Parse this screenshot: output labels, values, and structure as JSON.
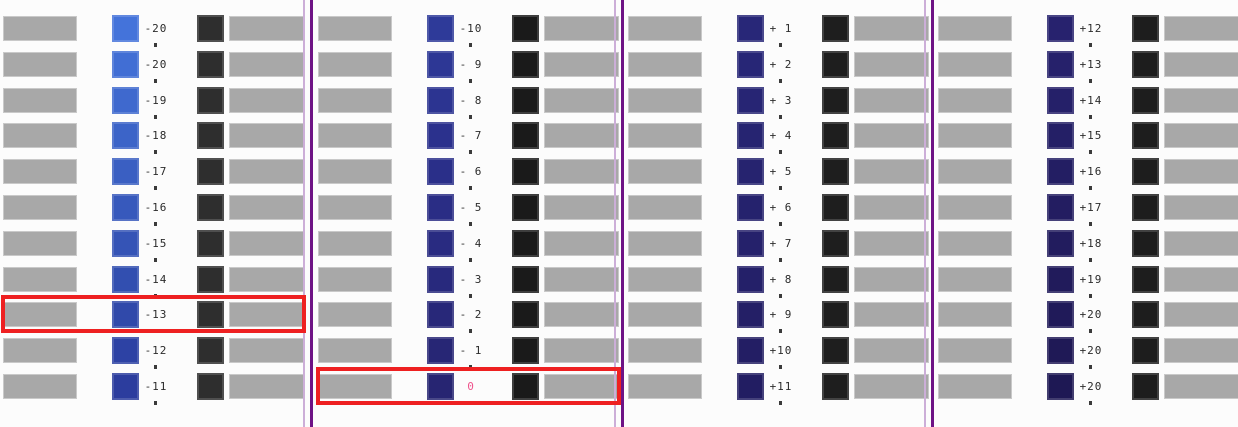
{
  "sheet": {
    "background": "#fcfcfc",
    "patch_gray": "#a8a8a8",
    "patch_border": "#c9c9c9",
    "label_color": "#2b2b2b",
    "dot_color": "#3a3a3a",
    "dot_glyph": "*"
  },
  "separator": {
    "thick_color": "#6e1385",
    "thin_color": "#ccaed8"
  },
  "highlight_boxes": [
    {
      "name": "column-1-selection",
      "column": 0,
      "row_index": 8,
      "border_color": "#ee2021",
      "label_color": null
    },
    {
      "name": "column-2-selection",
      "column": 1,
      "row_index": 10,
      "border_color": "#ee2021",
      "label_color": "#ef558d"
    }
  ],
  "columns": [
    {
      "black": "#2e2e2e",
      "rows": [
        {
          "label": "-20",
          "blue": "#4473da"
        },
        {
          "label": "-20",
          "blue": "#416ed4"
        },
        {
          "label": "-19",
          "blue": "#3f69ce"
        },
        {
          "label": "-18",
          "blue": "#3c64c8"
        },
        {
          "label": "-17",
          "blue": "#3a5fc2"
        },
        {
          "label": "-16",
          "blue": "#3759bc"
        },
        {
          "label": "-15",
          "blue": "#3554b6"
        },
        {
          "label": "-14",
          "blue": "#324fb0"
        },
        {
          "label": "-13",
          "blue": "#3049aa"
        },
        {
          "label": "-12",
          "blue": "#2d42a4"
        },
        {
          "label": "-11",
          "blue": "#2c3d9e"
        }
      ]
    },
    {
      "black": "#1a1a1a",
      "rows": [
        {
          "label": "-10",
          "blue": "#2e3a99"
        },
        {
          "label": "- 9",
          "blue": "#2d3795"
        },
        {
          "label": "- 8",
          "blue": "#2c3491"
        },
        {
          "label": "- 7",
          "blue": "#2b318d"
        },
        {
          "label": "- 6",
          "blue": "#2a2f89"
        },
        {
          "label": "- 5",
          "blue": "#2a2d85"
        },
        {
          "label": "- 4",
          "blue": "#292b81"
        },
        {
          "label": "- 3",
          "blue": "#28297d"
        },
        {
          "label": "- 2",
          "blue": "#282879"
        },
        {
          "label": "- 1",
          "blue": "#272675"
        },
        {
          "label": "0",
          "blue": "#272572"
        }
      ]
    },
    {
      "black": "#1e1e1e",
      "rows": [
        {
          "label": "+ 1",
          "blue": "#282778"
        },
        {
          "label": "+ 2",
          "blue": "#272676"
        },
        {
          "label": "+ 3",
          "blue": "#272574"
        },
        {
          "label": "+ 4",
          "blue": "#262471"
        },
        {
          "label": "+ 5",
          "blue": "#26236f"
        },
        {
          "label": "+ 6",
          "blue": "#25226d"
        },
        {
          "label": "+ 7",
          "blue": "#25216b"
        },
        {
          "label": "+ 8",
          "blue": "#242069"
        },
        {
          "label": "+ 9",
          "blue": "#241f66"
        },
        {
          "label": "+10",
          "blue": "#231e64"
        },
        {
          "label": "+11",
          "blue": "#221d62"
        }
      ]
    },
    {
      "black": "#1d1d1d",
      "rows": [
        {
          "label": "+12",
          "blue": "#27226e"
        },
        {
          "label": "+13",
          "blue": "#26216b"
        },
        {
          "label": "+14",
          "blue": "#252069"
        },
        {
          "label": "+15",
          "blue": "#241f66"
        },
        {
          "label": "+16",
          "blue": "#231e63"
        },
        {
          "label": "+17",
          "blue": "#231d61"
        },
        {
          "label": "+18",
          "blue": "#221c5e"
        },
        {
          "label": "+19",
          "blue": "#211b5b"
        },
        {
          "label": "+20",
          "blue": "#201a59"
        },
        {
          "label": "+20",
          "blue": "#1f1956"
        },
        {
          "label": "+20",
          "blue": "#1e1854"
        }
      ]
    }
  ]
}
